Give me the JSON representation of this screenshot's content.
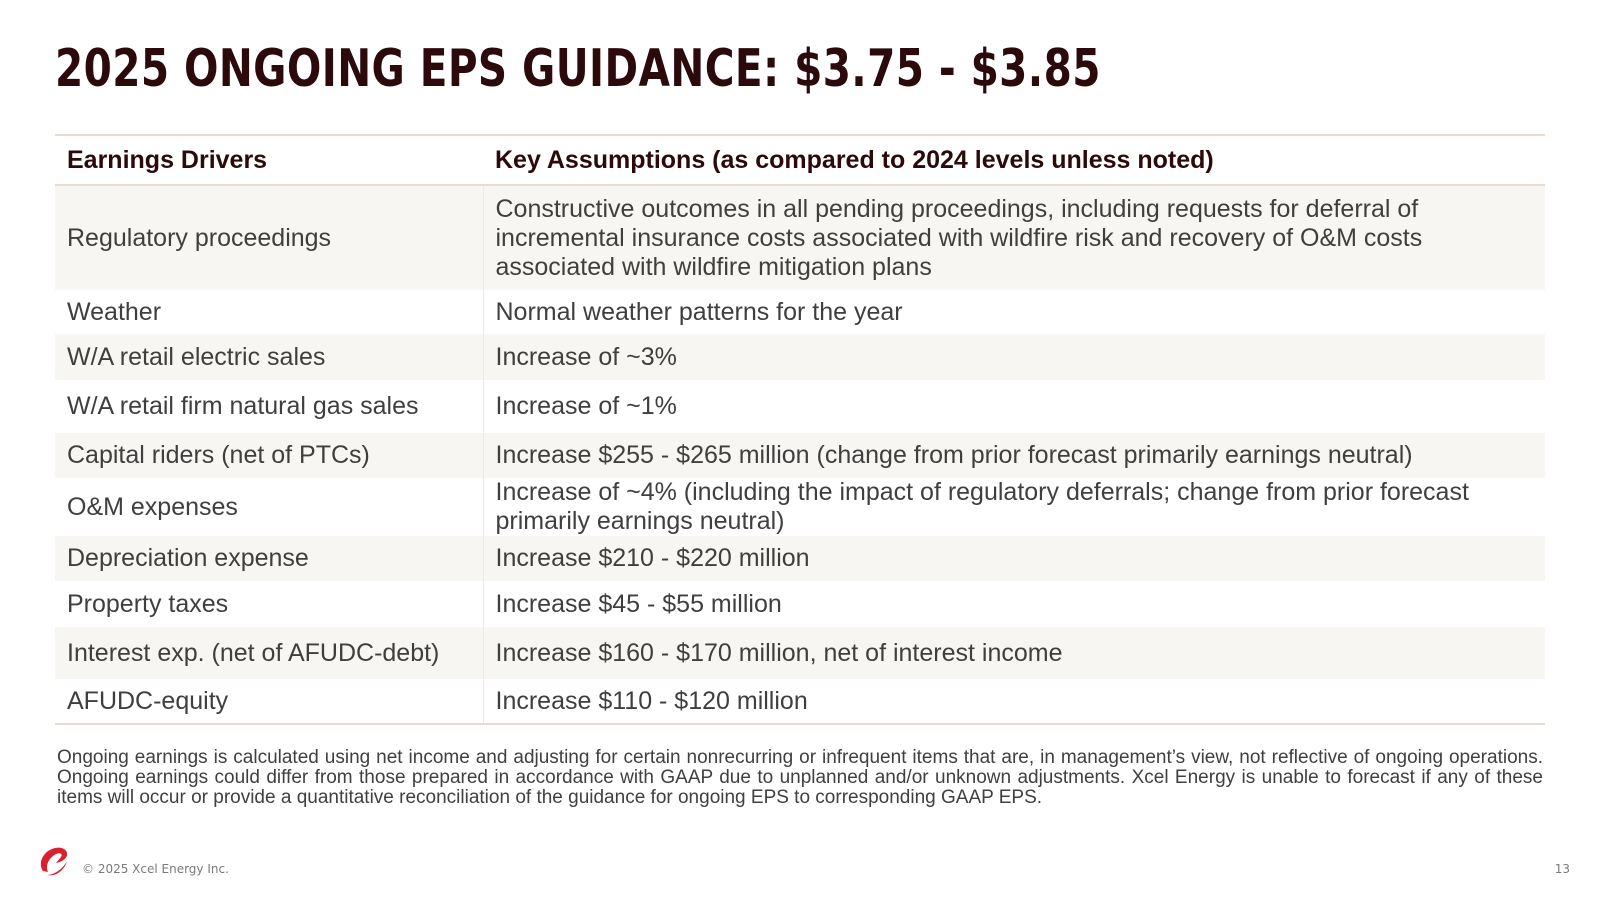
{
  "slide": {
    "title": "2025 ONGOING EPS GUIDANCE: $3.75 - $3.85",
    "table": {
      "headers": [
        "Earnings Drivers",
        "Key Assumptions (as compared to 2024 levels unless noted)"
      ],
      "rows": [
        {
          "driver": "Regulatory proceedings",
          "assumption": "Constructive outcomes in all pending proceedings, including requests for deferral of incremental insurance costs associated with wildfire risk and recovery of O&M costs associated with wildfire mitigation plans"
        },
        {
          "driver": "Weather",
          "assumption": "Normal weather patterns for the year"
        },
        {
          "driver": "W/A retail electric sales",
          "assumption": "Increase of ~3%"
        },
        {
          "driver": "W/A retail firm natural gas sales",
          "assumption": "Increase of ~1%"
        },
        {
          "driver": "Capital riders (net of PTCs)",
          "assumption": "Increase $255 - $265 million (change from prior forecast primarily earnings neutral)"
        },
        {
          "driver": "O&M expenses",
          "assumption": "Increase of ~4% (including the impact of regulatory deferrals; change from prior forecast primarily earnings neutral)"
        },
        {
          "driver": "Depreciation expense",
          "assumption": "Increase $210 - $220 million"
        },
        {
          "driver": "Property taxes",
          "assumption": "Increase $45 - $55 million"
        },
        {
          "driver": "Interest exp. (net of AFUDC-debt)",
          "assumption": "Increase $160 - $170 million, net of interest income"
        },
        {
          "driver": "AFUDC-equity",
          "assumption": "Increase $110 - $120 million"
        }
      ]
    },
    "footnote": "Ongoing earnings is calculated using net income and adjusting for certain nonrecurring or infrequent items that are, in management’s view, not reflective of ongoing operations. Ongoing earnings could differ from those prepared in accordance with GAAP due to unplanned and/or unknown adjustments. Xcel Energy is unable to forecast if any of these items will occur or provide a quantitative reconciliation of the guidance for ongoing EPS to corresponding GAAP EPS.",
    "footer": {
      "logo_icon": "xcel-energy-logo-icon",
      "copyright": "© 2025 Xcel Energy Inc.",
      "page_number": "13"
    },
    "colors": {
      "title": "#2c0a0c",
      "body_text": "#3f3f3f",
      "row_shade": "#f8f6f2",
      "rule": "#e7dccf",
      "logo_red": "#d9202f"
    }
  }
}
